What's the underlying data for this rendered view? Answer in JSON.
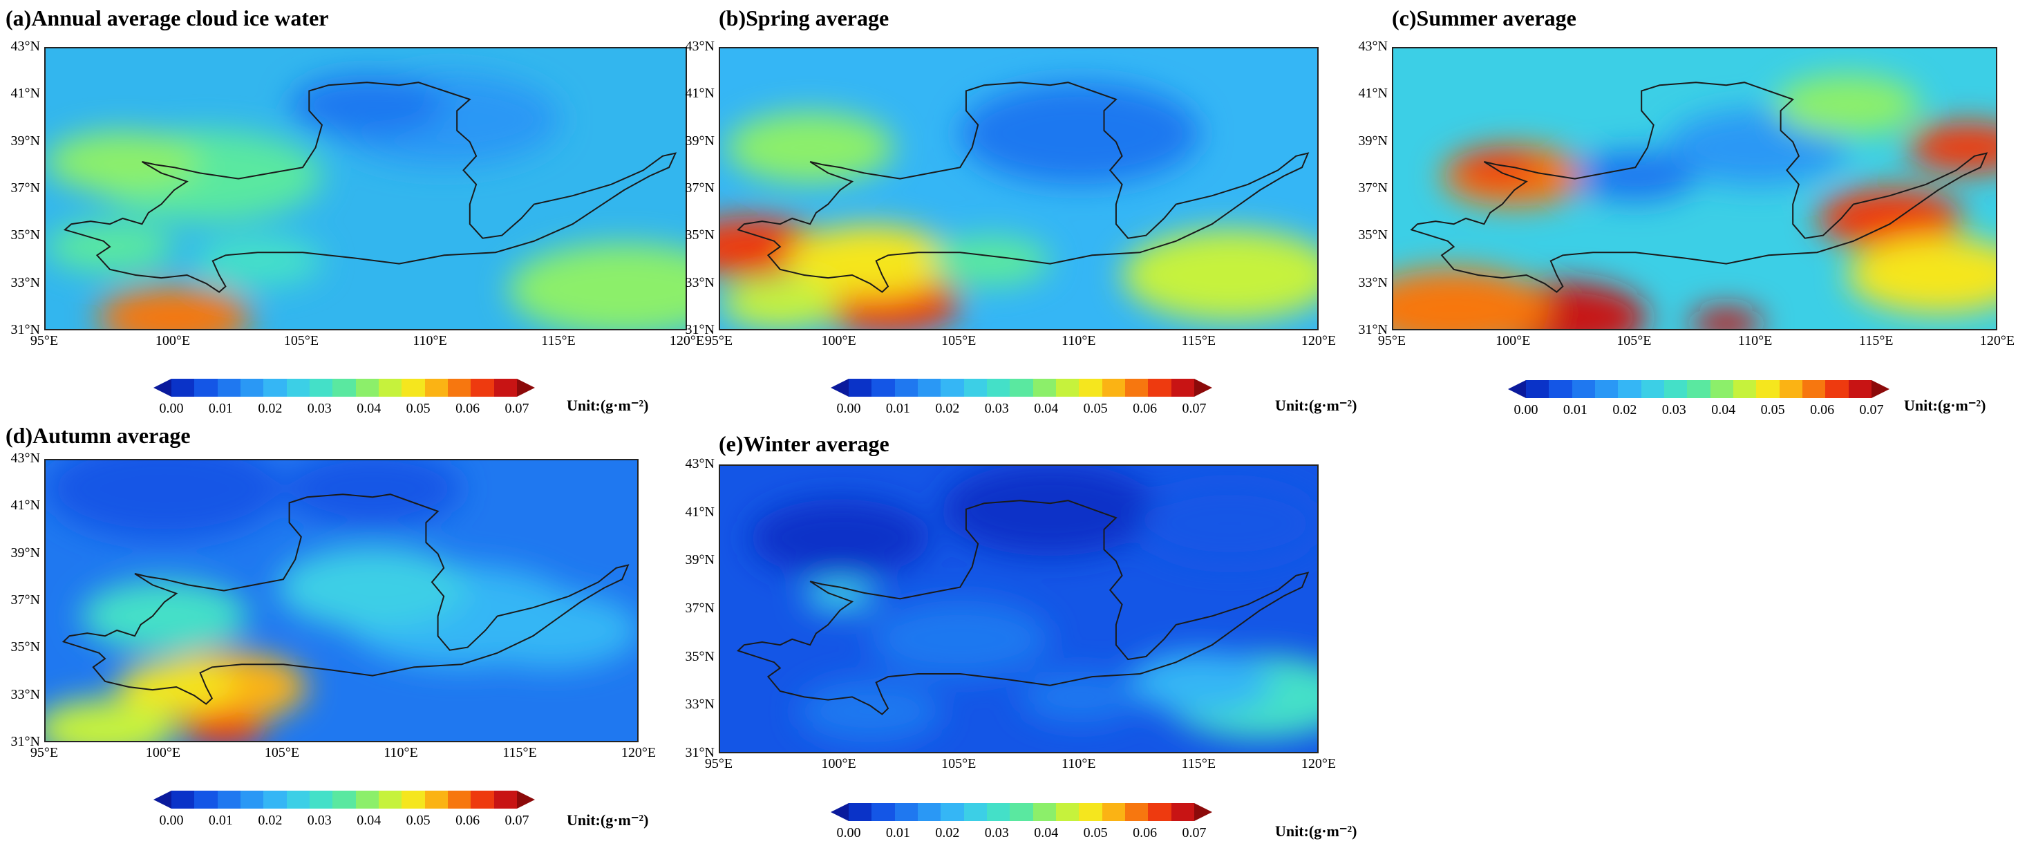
{
  "panels": [
    {
      "id": "a",
      "title": "(a)Annual average cloud ice water",
      "theme": "annual"
    },
    {
      "id": "b",
      "title": "(b)Spring average",
      "theme": "spring"
    },
    {
      "id": "c",
      "title": "(c)Summer average",
      "theme": "summer"
    },
    {
      "id": "d",
      "title": "(d)Autumn average",
      "theme": "autumn"
    },
    {
      "id": "e",
      "title": "(e)Winter average",
      "theme": "winter"
    }
  ],
  "lat_labels": [
    "43°N",
    "41°N",
    "39°N",
    "37°N",
    "35°N",
    "33°N",
    "31°N"
  ],
  "lon_labels": [
    "95°E",
    "100°E",
    "105°E",
    "110°E",
    "115°E",
    "120°E"
  ],
  "colorbar": {
    "ticks": [
      "0.00",
      "0.01",
      "0.02",
      "0.03",
      "0.04",
      "0.05",
      "0.06",
      "0.07"
    ],
    "unit": "Unit:(g·m⁻²)",
    "colors": [
      "#0a1a9c",
      "#0a33c8",
      "#1456e6",
      "#1f78f0",
      "#2a98f5",
      "#35b6f5",
      "#3ccfe6",
      "#44e0c8",
      "#5ae8a0",
      "#8cef6a",
      "#c6f23c",
      "#f5e61e",
      "#fbb314",
      "#f7770f",
      "#ee3a0f",
      "#c81414",
      "#8c0a0a"
    ]
  }
}
